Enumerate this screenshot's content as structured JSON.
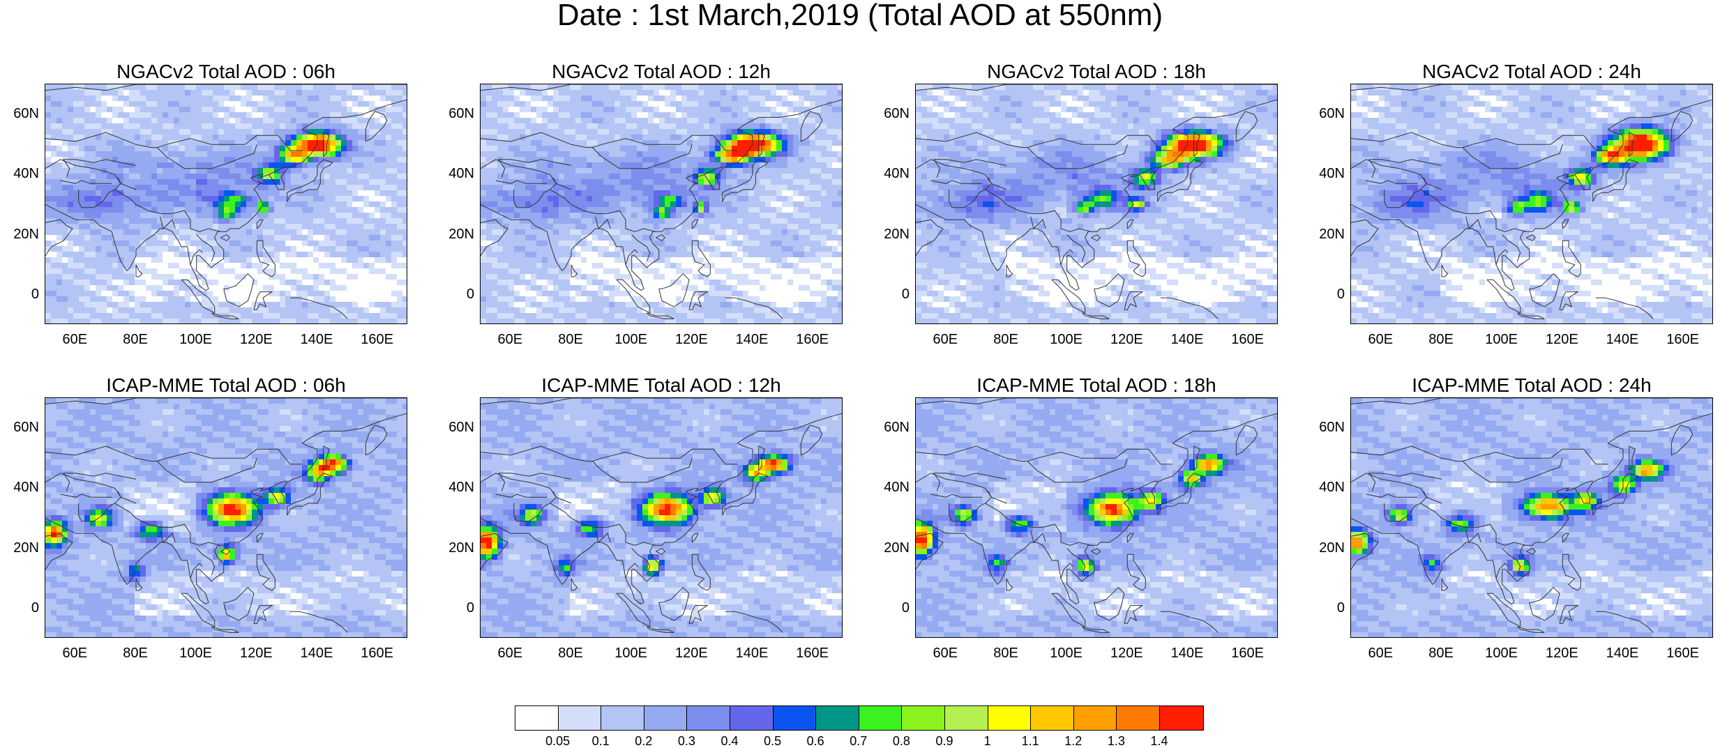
{
  "figure": {
    "title": "Date : 1st March,2019 (Total AOD at 550nm)"
  },
  "panels": [
    {
      "title": "NGACv2 Total AOD : 06h",
      "model": "NGACv2",
      "hour": "06h"
    },
    {
      "title": "NGACv2 Total AOD : 12h",
      "model": "NGACv2",
      "hour": "12h"
    },
    {
      "title": "NGACv2 Total AOD : 18h",
      "model": "NGACv2",
      "hour": "18h"
    },
    {
      "title": "NGACv2 Total AOD : 24h",
      "model": "NGACv2",
      "hour": "24h"
    },
    {
      "title": "ICAP-MME Total AOD : 06h",
      "model": "ICAP-MME",
      "hour": "06h"
    },
    {
      "title": "ICAP-MME Total AOD : 12h",
      "model": "ICAP-MME",
      "hour": "12h"
    },
    {
      "title": "ICAP-MME Total AOD : 18h",
      "model": "ICAP-MME",
      "hour": "18h"
    },
    {
      "title": "ICAP-MME Total AOD : 24h",
      "model": "ICAP-MME",
      "hour": "24h"
    }
  ],
  "axes": {
    "lat_ticks": [
      "60N",
      "40N",
      "20N",
      "0"
    ],
    "lon_ticks": [
      "60E",
      "80E",
      "100E",
      "120E",
      "140E",
      "160E"
    ],
    "lat_range": [
      -10,
      70
    ],
    "lon_range": [
      50,
      170
    ]
  },
  "colorbar": {
    "labels": [
      "0.05",
      "0.1",
      "0.2",
      "0.3",
      "0.4",
      "0.5",
      "0.6",
      "0.7",
      "0.8",
      "0.9",
      "1",
      "1.1",
      "1.2",
      "1.3",
      "1.4"
    ],
    "colors": [
      "#ffffff",
      "#d3defa",
      "#b3c4f5",
      "#95aaf0",
      "#7c8ded",
      "#6567ea",
      "#0a55f0",
      "#009688",
      "#3cf21e",
      "#8cf21e",
      "#b4f050",
      "#ffff00",
      "#ffc800",
      "#ffa000",
      "#ff7800",
      "#ff1e00"
    ]
  }
}
